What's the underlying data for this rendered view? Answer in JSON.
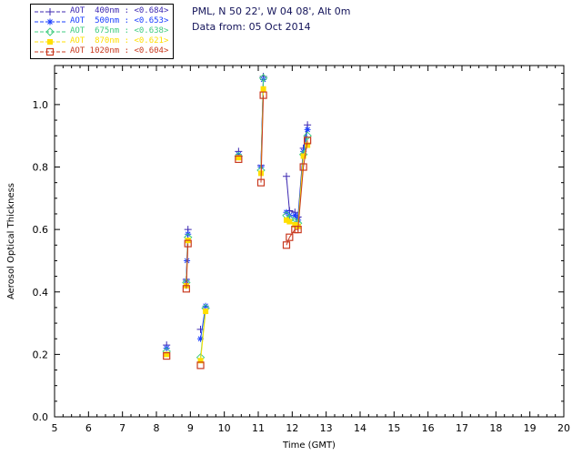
{
  "header": {
    "line1": "PML, N 50 22', W 04 08', Alt 0m",
    "line2": "Data from: 05 Oct 2014"
  },
  "chart_data": {
    "type": "scatter",
    "title": "PML, N 50 22', W 04 08', Alt 0m",
    "subtitle": "Data from: 05 Oct 2014",
    "xlabel": "Time (GMT)",
    "ylabel": "Aerosol Optical Thickness",
    "xlim": [
      5,
      20
    ],
    "ylim": [
      0,
      1.125
    ],
    "xticks": [
      5,
      6,
      7,
      8,
      9,
      10,
      11,
      12,
      13,
      14,
      15,
      16,
      17,
      18,
      19,
      20
    ],
    "yticks": [
      0.0,
      0.2,
      0.4,
      0.6,
      0.8,
      1.0
    ],
    "grid": false,
    "legend_position": "top-left",
    "connect_gap_hours": 0.2,
    "x": [
      8.3,
      8.88,
      8.9,
      8.93,
      9.3,
      9.45,
      10.42,
      11.08,
      11.15,
      11.83,
      11.92,
      12.08,
      12.17,
      12.33,
      12.45
    ],
    "series": [
      {
        "id": "400nm",
        "name": "AOT 400nm",
        "legend_label": "AOT  400nm : <0.684>",
        "mean": 0.684,
        "color": "#3c28b1",
        "marker": "plus",
        "values": [
          0.23,
          0.44,
          null,
          0.6,
          0.28,
          null,
          0.85,
          0.805,
          1.09,
          0.77,
          0.66,
          0.655,
          0.64,
          0.86,
          0.935
        ]
      },
      {
        "id": "500nm",
        "name": "AOT 500nm",
        "legend_label": "AOT  500nm : <0.653>",
        "mean": 0.653,
        "color": "#1a3fff",
        "marker": "asterisk",
        "values": [
          0.22,
          0.435,
          0.5,
          0.585,
          0.25,
          0.355,
          0.84,
          0.8,
          1.08,
          0.655,
          0.645,
          0.645,
          0.63,
          0.85,
          0.92
        ]
      },
      {
        "id": "675nm",
        "name": "AOT 675nm",
        "legend_label": "AOT  675nm : <0.638>",
        "mean": 0.638,
        "color": "#40cc80",
        "marker": "diamond",
        "values": [
          0.21,
          0.43,
          null,
          0.575,
          0.19,
          0.348,
          0.835,
          0.79,
          1.085,
          0.645,
          0.635,
          0.625,
          0.62,
          0.84,
          0.9
        ]
      },
      {
        "id": "870nm",
        "name": "AOT 870nm",
        "legend_label": "AOT  870nm : <0.621>",
        "mean": 0.621,
        "color": "#ffdf00",
        "marker": "square-filled",
        "values": [
          0.2,
          0.42,
          null,
          0.565,
          0.18,
          0.338,
          0.83,
          0.78,
          1.05,
          0.63,
          0.625,
          0.615,
          0.61,
          0.835,
          0.87
        ]
      },
      {
        "id": "1020nm",
        "name": "AOT 1020nm",
        "legend_label": "AOT 1020nm : <0.604>",
        "mean": 0.604,
        "color": "#c93a20",
        "marker": "square-open",
        "values": [
          0.195,
          0.41,
          null,
          0.555,
          0.165,
          null,
          0.825,
          0.75,
          1.03,
          0.55,
          0.575,
          0.6,
          0.6,
          0.8,
          0.885
        ]
      }
    ]
  }
}
